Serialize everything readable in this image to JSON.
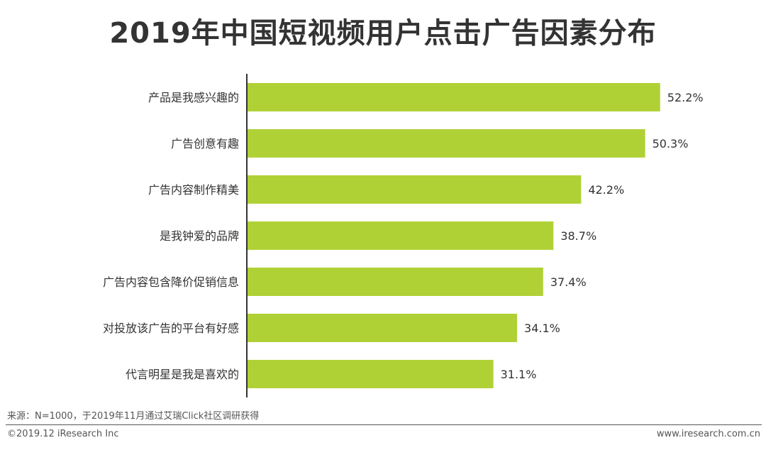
{
  "title": "2019年中国短视频用户点击广告因素分布",
  "chart_data": {
    "type": "bar",
    "orientation": "horizontal",
    "categories": [
      "产品是我感兴趣的",
      "广告创意有趣",
      "广告内容制作精美",
      "是我钟爱的品牌",
      "广告内容包含降价促销信息",
      "对投放该广告的平台有好感",
      "代言明星是我是喜欢的"
    ],
    "values": [
      52.2,
      50.3,
      42.2,
      38.7,
      37.4,
      34.1,
      31.1
    ],
    "value_labels": [
      "52.2%",
      "50.3%",
      "42.2%",
      "38.7%",
      "37.4%",
      "34.1%",
      "31.1%"
    ],
    "unit": "%",
    "xlim": [
      0,
      62
    ],
    "grid": false,
    "legend": "none",
    "bar_color": "#b0d136"
  },
  "footer": {
    "source": "来源：N=1000，于2019年11月通过艾瑞Click社区调研获得",
    "copyright": "©2019.12 iResearch Inc",
    "website": "www.iresearch.com.cn"
  }
}
